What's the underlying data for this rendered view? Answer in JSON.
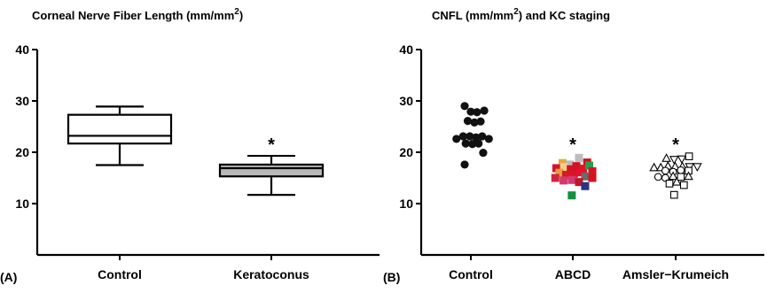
{
  "chart_data": [
    {
      "type": "box",
      "panel_label": "(A)",
      "title": "Corneal  Nerve  Fiber  Length (mm/mm",
      "title_superscript": "2",
      "title_suffix": ")",
      "categories": [
        "Control",
        "Keratoconus"
      ],
      "ylim": [
        10,
        40
      ],
      "yticks": [
        "10",
        "20",
        "30",
        "40"
      ],
      "boxes": [
        {
          "category": "Control",
          "min": 17.5,
          "q1": 21.7,
          "median": 23.2,
          "q3": 27.3,
          "max": 28.9,
          "fill": "#ffffff"
        },
        {
          "category": "Keratoconus",
          "min": 11.7,
          "q1": 15.3,
          "median": 16.9,
          "q3": 17.6,
          "max": 19.3,
          "fill": "#b8b8b8"
        }
      ],
      "annotations": [
        {
          "category": "Keratoconus",
          "text": "*"
        }
      ]
    },
    {
      "type": "scatter",
      "panel_label": "(B)",
      "title": "CNFL (mm/mm",
      "title_superscript": "2",
      "title_suffix": ") and KC staging",
      "categories": [
        "Control",
        "ABCD",
        "Amsler−Krumeich"
      ],
      "ylim": [
        10,
        40
      ],
      "yticks": [
        "10",
        "20",
        "30",
        "40"
      ],
      "annotations": [
        {
          "category": "ABCD",
          "text": "*"
        },
        {
          "category": "Amsler−Krumeich",
          "text": "*"
        }
      ],
      "series": [
        {
          "category": "Control",
          "marker": "filled-circle",
          "points": [
            {
              "x": -0.12,
              "y": 29.0
            },
            {
              "x": 0.0,
              "y": 27.9
            },
            {
              "x": 0.12,
              "y": 27.8
            },
            {
              "x": 0.26,
              "y": 28.1
            },
            {
              "x": -0.06,
              "y": 26.1
            },
            {
              "x": 0.07,
              "y": 25.8
            },
            {
              "x": 0.19,
              "y": 26.0
            },
            {
              "x": -0.28,
              "y": 22.6
            },
            {
              "x": -0.15,
              "y": 23.1
            },
            {
              "x": -0.02,
              "y": 23.1
            },
            {
              "x": 0.1,
              "y": 22.9
            },
            {
              "x": 0.22,
              "y": 23.1
            },
            {
              "x": 0.35,
              "y": 22.6
            },
            {
              "x": -0.1,
              "y": 21.7
            },
            {
              "x": 0.03,
              "y": 21.6
            },
            {
              "x": 0.15,
              "y": 21.7
            },
            {
              "x": 0.24,
              "y": 19.9
            },
            {
              "x": -0.12,
              "y": 17.6
            }
          ]
        },
        {
          "category": "ABCD",
          "marker": "filled-square",
          "points": [
            {
              "x": -0.2,
              "y": 17.9,
              "color": "#e3ac3d"
            },
            {
              "x": -0.06,
              "y": 17.6,
              "color": "#b9b9b9"
            },
            {
              "x": 0.12,
              "y": 18.9,
              "color": "#bdbdbd"
            },
            {
              "x": 0.28,
              "y": 18.0,
              "color": "#d0121c"
            },
            {
              "x": -0.32,
              "y": 16.9,
              "color": "#d8122b"
            },
            {
              "x": -0.17,
              "y": 17.1,
              "color": "#f4ce8c"
            },
            {
              "x": -0.04,
              "y": 16.7,
              "color": "#d4141f"
            },
            {
              "x": 0.07,
              "y": 17.3,
              "color": "#cc1422"
            },
            {
              "x": 0.2,
              "y": 16.8,
              "color": "#de1524"
            },
            {
              "x": 0.32,
              "y": 17.4,
              "color": "#2a9d4f"
            },
            {
              "x": -0.26,
              "y": 16.0,
              "color": "#e2a23c"
            },
            {
              "x": -0.13,
              "y": 15.6,
              "color": "#d3192a"
            },
            {
              "x": 0.02,
              "y": 15.8,
              "color": "#d7152a"
            },
            {
              "x": 0.15,
              "y": 16.1,
              "color": "#e4102c"
            },
            {
              "x": 0.38,
              "y": 16.3,
              "color": "#d31424"
            },
            {
              "x": 0.24,
              "y": 15.3,
              "color": "#6a6a6a"
            },
            {
              "x": -0.34,
              "y": 15.0,
              "color": "#d3243e"
            },
            {
              "x": -0.18,
              "y": 14.5,
              "color": "#d23a6e"
            },
            {
              "x": -0.02,
              "y": 14.6,
              "color": "#d43a70"
            },
            {
              "x": 0.38,
              "y": 15.0,
              "color": "#d51122"
            },
            {
              "x": 0.12,
              "y": 14.2,
              "color": "#bf1529"
            },
            {
              "x": 0.24,
              "y": 13.4,
              "color": "#2c3586"
            },
            {
              "x": -0.02,
              "y": 11.6,
              "color": "#11913e"
            }
          ]
        },
        {
          "category": "Amsler−Krumeich",
          "marker": "mixed",
          "points": [
            {
              "x": -0.18,
              "y": 18.8,
              "m": "tri-up"
            },
            {
              "x": -0.03,
              "y": 18.6,
              "m": "tri-down"
            },
            {
              "x": 0.12,
              "y": 18.7,
              "m": "tri-down"
            },
            {
              "x": 0.26,
              "y": 19.2,
              "m": "square"
            },
            {
              "x": -0.42,
              "y": 17.0,
              "m": "tri-up"
            },
            {
              "x": -0.29,
              "y": 17.0,
              "m": "tri-up"
            },
            {
              "x": -0.15,
              "y": 17.3,
              "m": "tri-up"
            },
            {
              "x": -0.01,
              "y": 17.2,
              "m": "tri-up"
            },
            {
              "x": 0.13,
              "y": 17.2,
              "m": "tri-up"
            },
            {
              "x": 0.27,
              "y": 17.2,
              "m": "tri-down"
            },
            {
              "x": 0.42,
              "y": 17.2,
              "m": "tri-down"
            },
            {
              "x": -0.2,
              "y": 16.4,
              "m": "circle"
            },
            {
              "x": -0.05,
              "y": 16.2,
              "m": "circle"
            },
            {
              "x": 0.1,
              "y": 16.5,
              "m": "circle"
            },
            {
              "x": 0.25,
              "y": 16.4,
              "m": "square"
            },
            {
              "x": -0.34,
              "y": 15.2,
              "m": "circle"
            },
            {
              "x": -0.2,
              "y": 15.0,
              "m": "circle"
            },
            {
              "x": -0.05,
              "y": 15.3,
              "m": "tri-up"
            },
            {
              "x": 0.1,
              "y": 15.2,
              "m": "square"
            },
            {
              "x": 0.25,
              "y": 15.3,
              "m": "tri-up"
            },
            {
              "x": -0.12,
              "y": 13.9,
              "m": "square"
            },
            {
              "x": 0.02,
              "y": 14.2,
              "m": "tri-up"
            },
            {
              "x": 0.16,
              "y": 13.6,
              "m": "square"
            },
            {
              "x": -0.03,
              "y": 11.7,
              "m": "square"
            }
          ]
        }
      ]
    }
  ]
}
